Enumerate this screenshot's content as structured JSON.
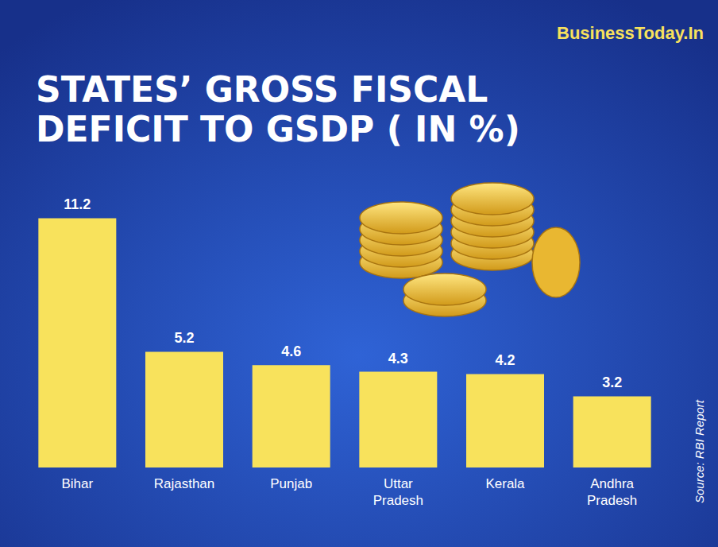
{
  "chart_data": {
    "type": "bar",
    "title": "STATES’ GROSS FISCAL DEFICIT TO GSDP ( IN %)",
    "annotations": [
      "BusinessToday.In",
      "Source: RBI Report"
    ],
    "categories": [
      "Bihar",
      "Rajasthan",
      "Punjab",
      "Uttar Pradesh",
      "Kerala",
      "Andhra Pradesh"
    ],
    "values": [
      11.2,
      5.2,
      4.6,
      4.3,
      4.2,
      3.2
    ],
    "color": "#f8e25c",
    "ylim": [
      0,
      12
    ],
    "data_labels": true,
    "tick_labels": false,
    "grid": false
  }
}
